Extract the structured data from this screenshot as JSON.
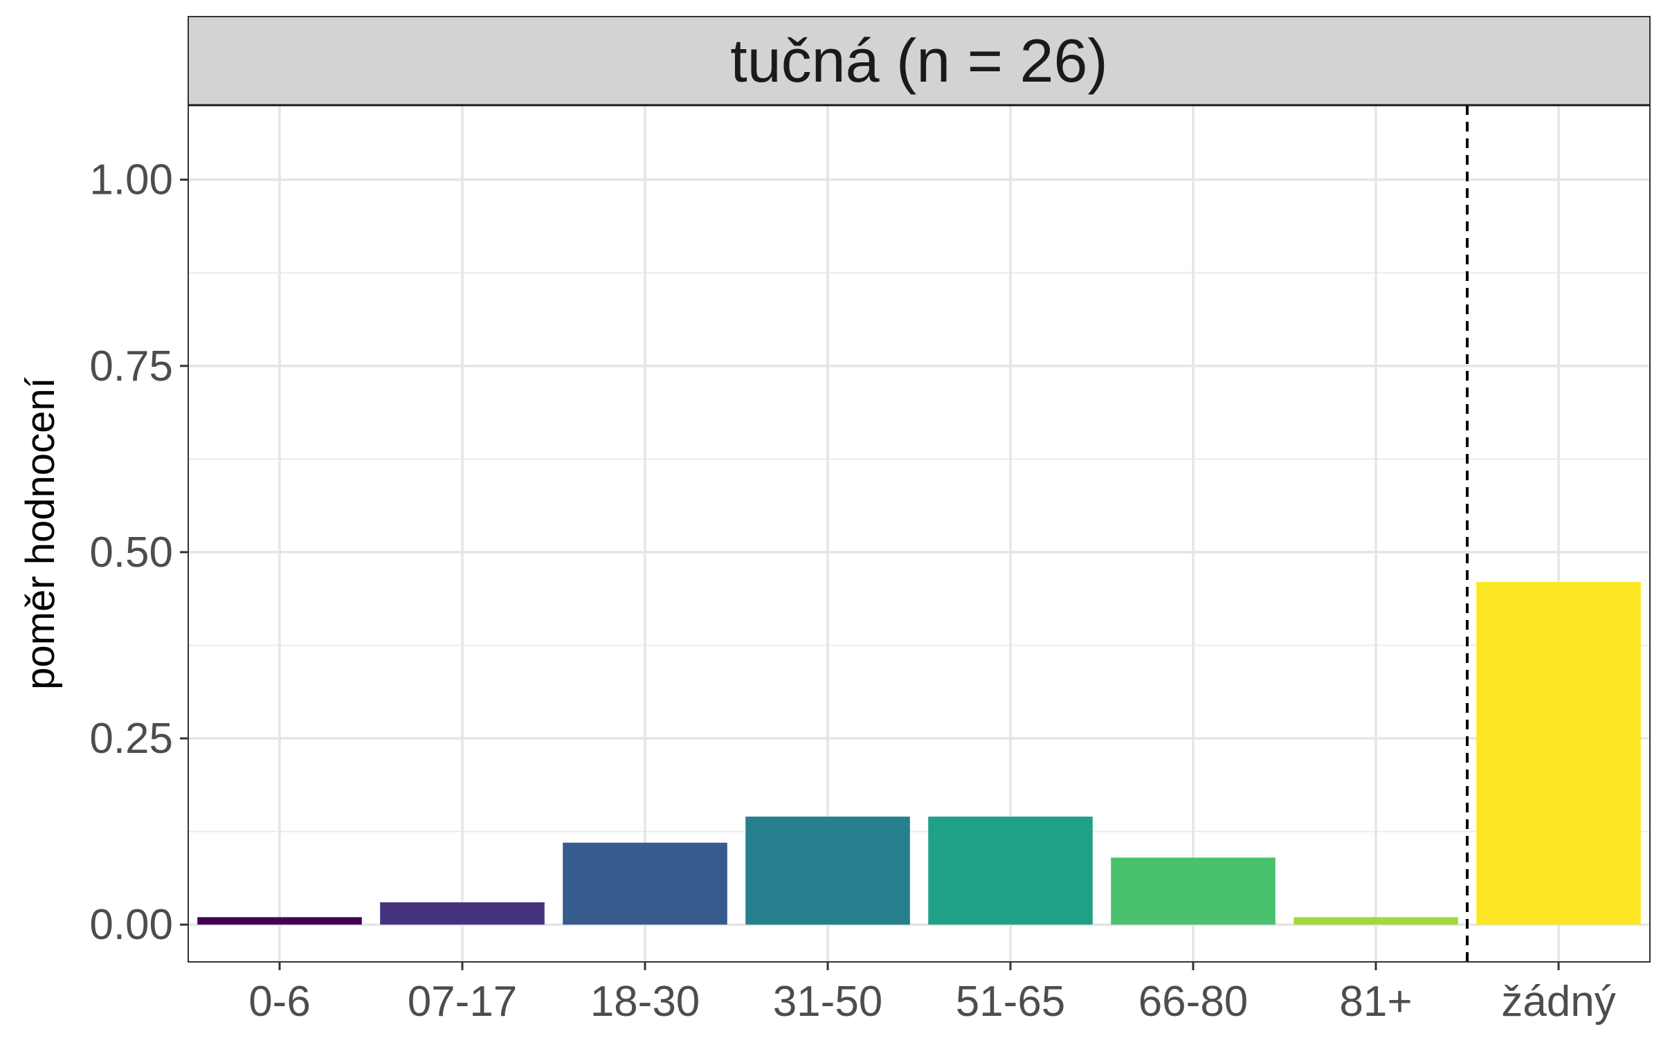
{
  "chart_data": {
    "type": "bar",
    "title": "tučná (n = 26)",
    "xlabel": "",
    "ylabel": "poměr hodnocení",
    "categories": [
      "0-6",
      "07-17",
      "18-30",
      "31-50",
      "51-65",
      "66-80",
      "81+",
      "žádný"
    ],
    "values": [
      0.01,
      0.03,
      0.11,
      0.145,
      0.145,
      0.09,
      0.01,
      0.46
    ],
    "colors": [
      "#440154",
      "#46337E",
      "#365C8D",
      "#277F8E",
      "#1FA187",
      "#4AC16D",
      "#9FDA3A",
      "#FDE725"
    ],
    "ylim": [
      -0.05,
      1.1
    ],
    "yticks": [
      0,
      0.25,
      0.5,
      0.75,
      1
    ],
    "ytick_labels": [
      "0.00",
      "0.25",
      "0.50",
      "0.75",
      "1.00"
    ],
    "separator": {
      "between": [
        "81+",
        "žádný"
      ],
      "style": "dashed"
    },
    "grid": true,
    "legend": "none",
    "strip_background": "#d3d3d3"
  }
}
